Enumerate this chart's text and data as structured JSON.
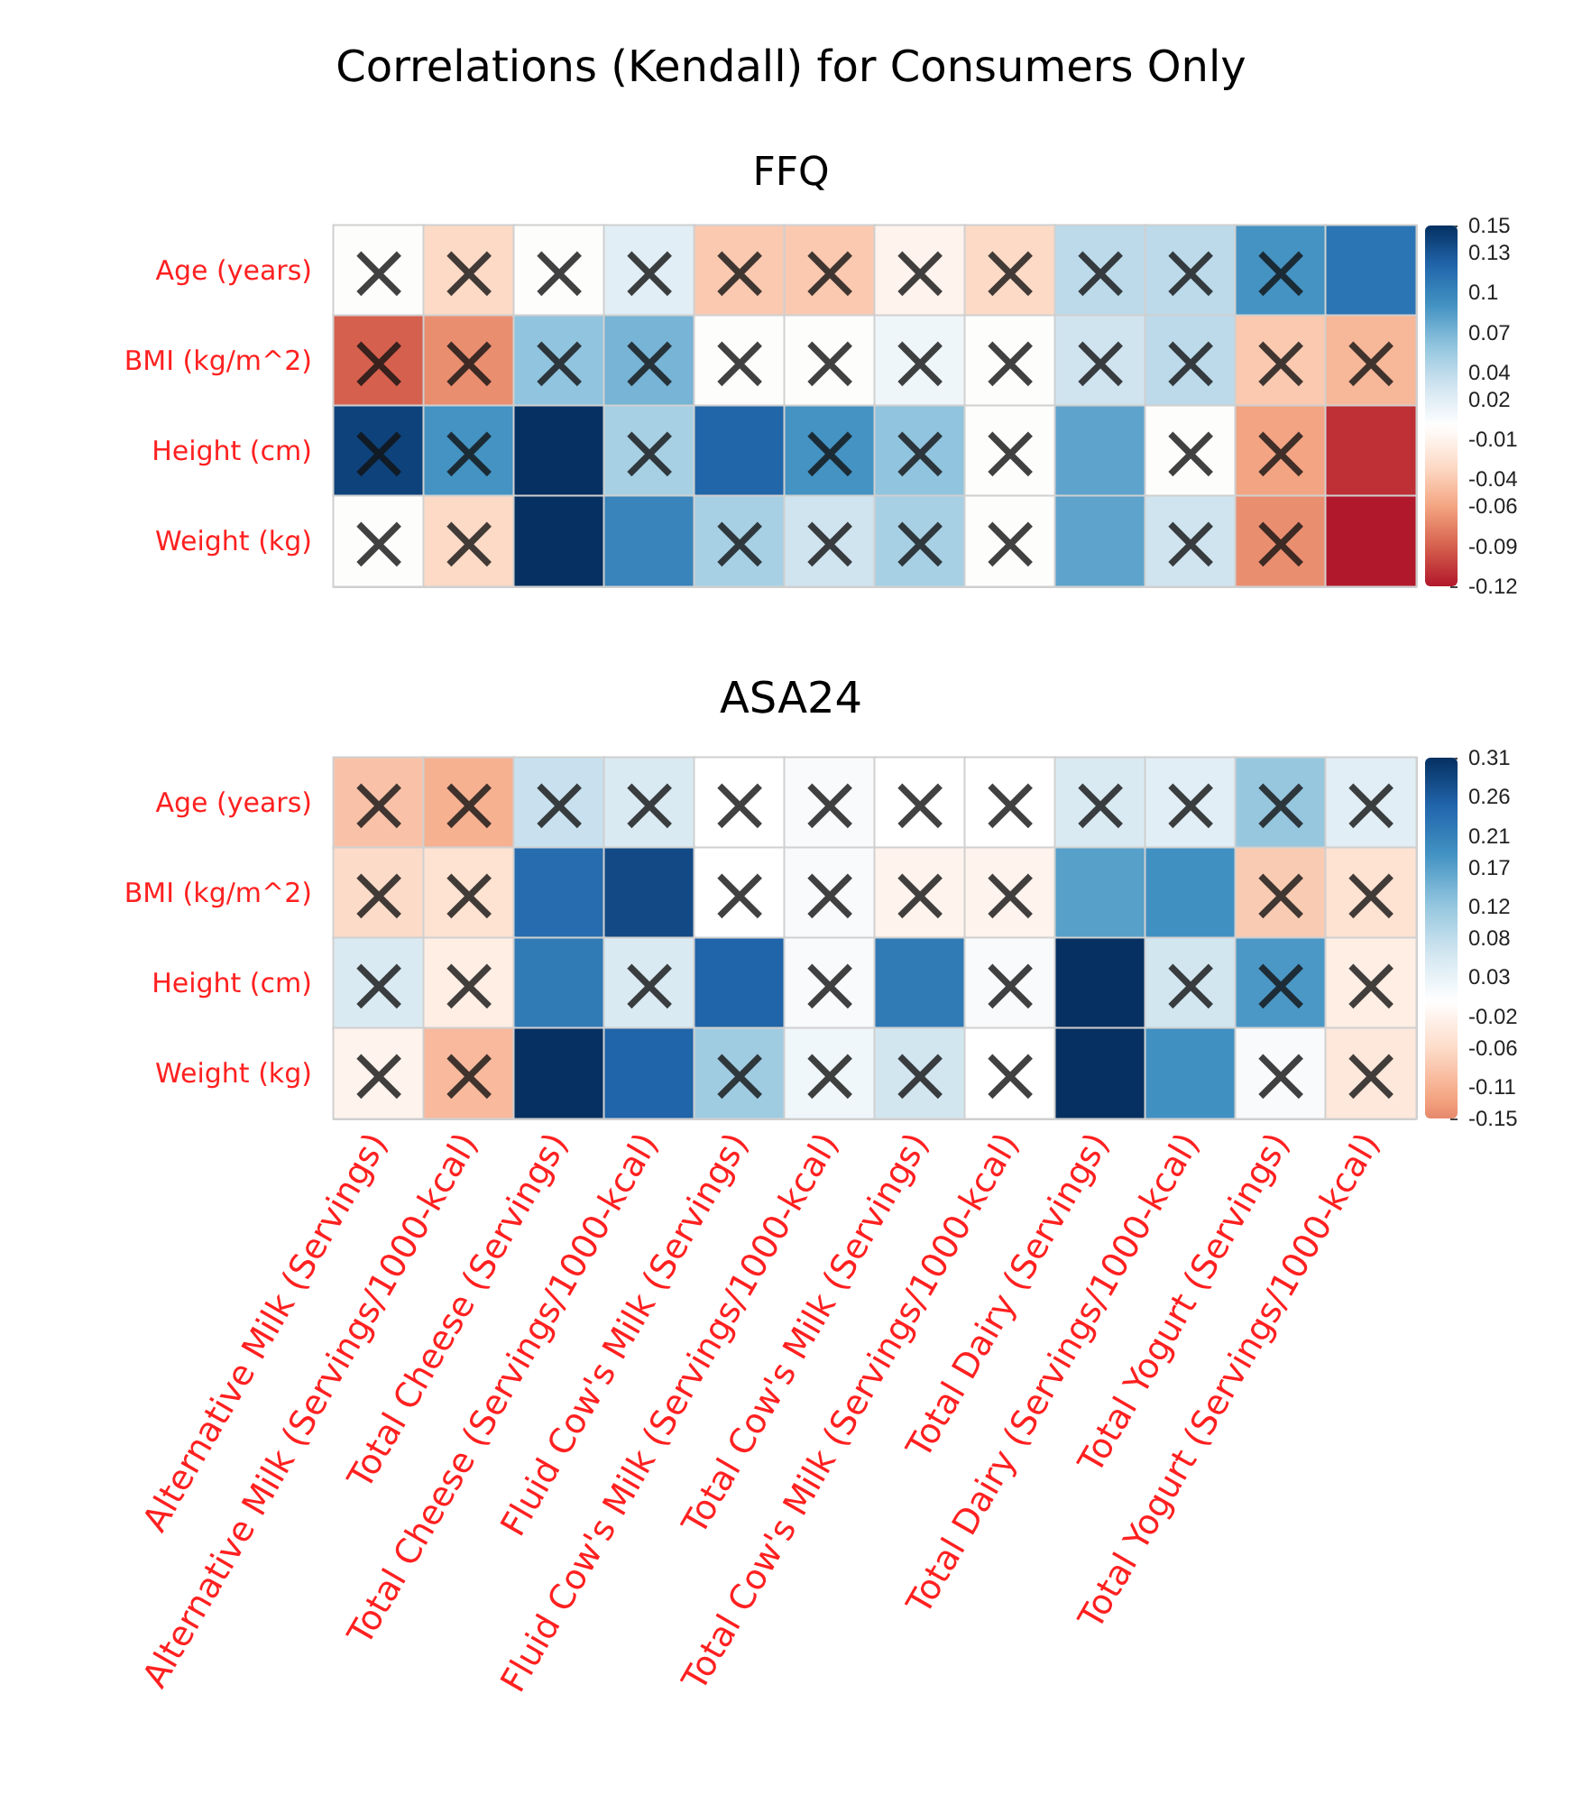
{
  "chart_data": [
    {
      "type": "heatmap",
      "title": "Correlations (Kendall) for Consumers Only",
      "subtitle": "FFQ",
      "categories": [
        null,
        null,
        null,
        null,
        null,
        null,
        null,
        null,
        null,
        null,
        null,
        null
      ],
      "y_categories": [
        "Age (years)",
        "BMI (kg/m^2)",
        "Height (cm)",
        "Weight (kg)"
      ],
      "cells": [
        [
          0.0,
          -0.03,
          0.0,
          0.02,
          -0.04,
          -0.04,
          -0.01,
          -0.03,
          0.04,
          0.04,
          0.09,
          0.11
        ],
        [
          -0.09,
          -0.07,
          0.06,
          0.07,
          0.0,
          0.0,
          0.01,
          0.0,
          0.03,
          0.04,
          -0.04,
          -0.05
        ],
        [
          0.14,
          0.09,
          0.15,
          0.05,
          0.12,
          0.09,
          0.06,
          0.0,
          0.08,
          0.0,
          -0.06,
          -0.11
        ],
        [
          0.0,
          -0.03,
          0.15,
          0.1,
          0.05,
          0.03,
          0.05,
          0.0,
          0.08,
          0.03,
          -0.07,
          -0.12
        ]
      ],
      "cell_labels": [
        [
          "×",
          "×",
          "×",
          "×",
          "×",
          "×",
          "×",
          "×",
          "×",
          "×",
          "×",
          null
        ],
        [
          "×",
          "×",
          "×",
          "×",
          "×",
          "×",
          "×",
          "×",
          "×",
          "×",
          "×",
          "×"
        ],
        [
          "×",
          "×",
          null,
          "×",
          null,
          "×",
          "×",
          "×",
          null,
          "×",
          "×",
          null
        ],
        [
          "×",
          "×",
          null,
          null,
          "×",
          "×",
          "×",
          "×",
          null,
          "×",
          "×",
          null
        ]
      ],
      "clim": [
        -0.12,
        0.15
      ],
      "cticks": [
        -0.12,
        -0.09,
        -0.06,
        -0.04,
        -0.01,
        0.02,
        0.04,
        0.07,
        0.1,
        0.13,
        0.15
      ]
    },
    {
      "type": "heatmap",
      "title": "ASA24",
      "categories": [
        "Alternative Milk (Servings)",
        "Alternative Milk (Servings/1000-kcal)",
        "Total Cheese (Servings)",
        "Total Cheese (Servings/1000-kcal)",
        "Fluid Cow's Milk (Servings)",
        "Fluid Cow's Milk (Servings/1000-kcal)",
        "Total Cow's Milk (Servings)",
        "Total Cow's Milk (Servings/1000-kcal)",
        "Total Dairy (Servings)",
        "Total Dairy (Servings/1000-kcal)",
        "Total Yogurt (Servings)",
        "Total Yogurt (Servings/1000-kcal)"
      ],
      "y_categories": [
        "Age (years)",
        "BMI (kg/m^2)",
        "Height (cm)",
        "Weight (kg)"
      ],
      "cells": [
        [
          -0.09,
          -0.11,
          0.07,
          0.05,
          0.0,
          0.01,
          0.0,
          0.0,
          0.05,
          0.04,
          0.12,
          0.04
        ],
        [
          -0.06,
          -0.05,
          0.24,
          0.28,
          0.0,
          0.01,
          -0.02,
          -0.02,
          0.17,
          0.19,
          -0.08,
          -0.05
        ],
        [
          0.05,
          -0.03,
          0.22,
          0.05,
          0.25,
          0.01,
          0.22,
          0.01,
          0.31,
          0.06,
          0.18,
          -0.03
        ],
        [
          -0.02,
          -0.1,
          0.31,
          0.25,
          0.11,
          0.02,
          0.06,
          0.0,
          0.31,
          0.19,
          0.01,
          -0.04
        ]
      ],
      "cell_labels": [
        [
          "×",
          "×",
          "×",
          "×",
          "×",
          "×",
          "×",
          "×",
          "×",
          "×",
          "×",
          "×"
        ],
        [
          "×",
          "×",
          null,
          null,
          "×",
          "×",
          "×",
          "×",
          null,
          null,
          "×",
          "×"
        ],
        [
          "×",
          "×",
          null,
          "×",
          null,
          "×",
          null,
          "×",
          null,
          "×",
          "×",
          "×"
        ],
        [
          "×",
          "×",
          null,
          null,
          "×",
          "×",
          "×",
          "×",
          null,
          null,
          "×",
          "×"
        ]
      ],
      "clim": [
        -0.15,
        0.31
      ],
      "cticks": [
        -0.15,
        -0.11,
        -0.06,
        -0.02,
        0.03,
        0.08,
        0.12,
        0.17,
        0.21,
        0.26,
        0.31
      ]
    }
  ]
}
